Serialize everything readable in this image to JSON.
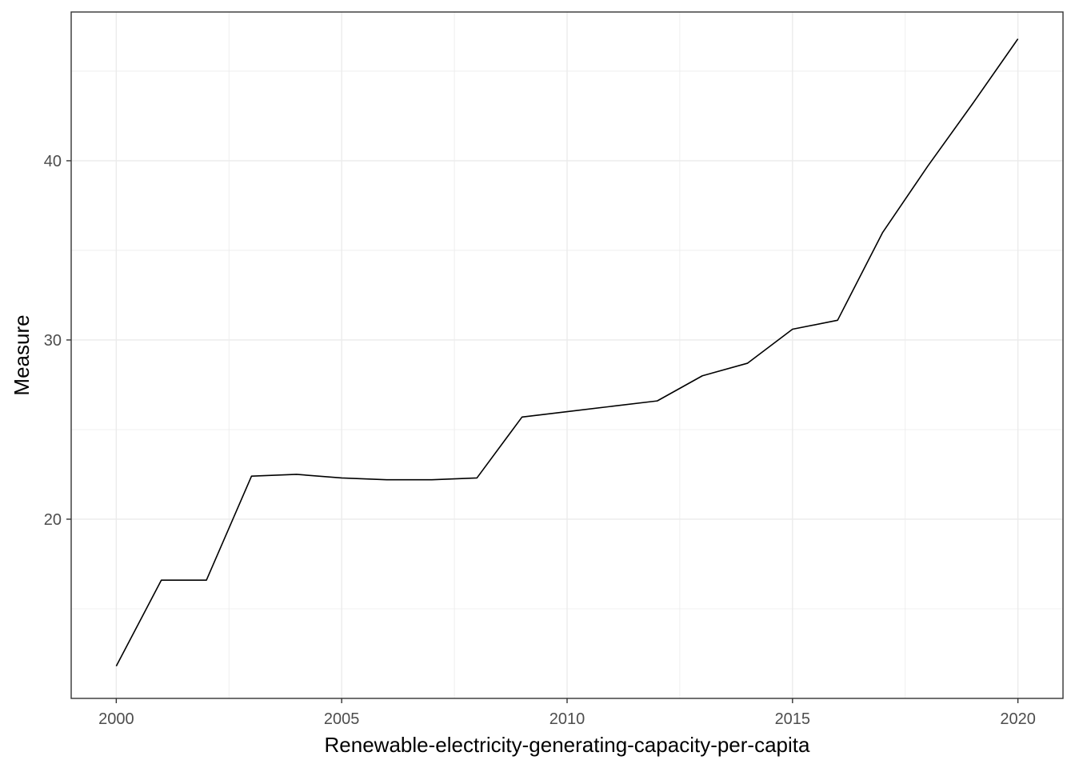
{
  "chart_data": {
    "type": "line",
    "xlabel": "Renewable-electricity-generating-capacity-per-capita",
    "ylabel": "Measure",
    "xlim": [
      1999.0,
      2021.0
    ],
    "ylim": [
      10.0,
      48.3
    ],
    "x_ticks": [
      2000,
      2005,
      2010,
      2015,
      2020
    ],
    "y_ticks": [
      20,
      30,
      40
    ],
    "x_minor": [
      2002.5,
      2007.5,
      2012.5,
      2017.5
    ],
    "y_minor": [
      15,
      25,
      35,
      45
    ],
    "grid": true,
    "line_color": "#000000",
    "grid_color": "#ebebeb",
    "series": [
      {
        "x": [
          2000,
          2001,
          2002,
          2003,
          2004,
          2005,
          2006,
          2007,
          2008,
          2009,
          2010,
          2011,
          2012,
          2013,
          2014,
          2015,
          2016,
          2017,
          2018,
          2019,
          2020
        ],
        "values": [
          11.8,
          16.6,
          16.6,
          22.4,
          22.5,
          22.3,
          22.2,
          22.2,
          22.3,
          25.7,
          26.0,
          26.3,
          26.6,
          28.0,
          28.7,
          30.6,
          31.1,
          36.0,
          39.7,
          43.2,
          46.8
        ]
      }
    ]
  }
}
